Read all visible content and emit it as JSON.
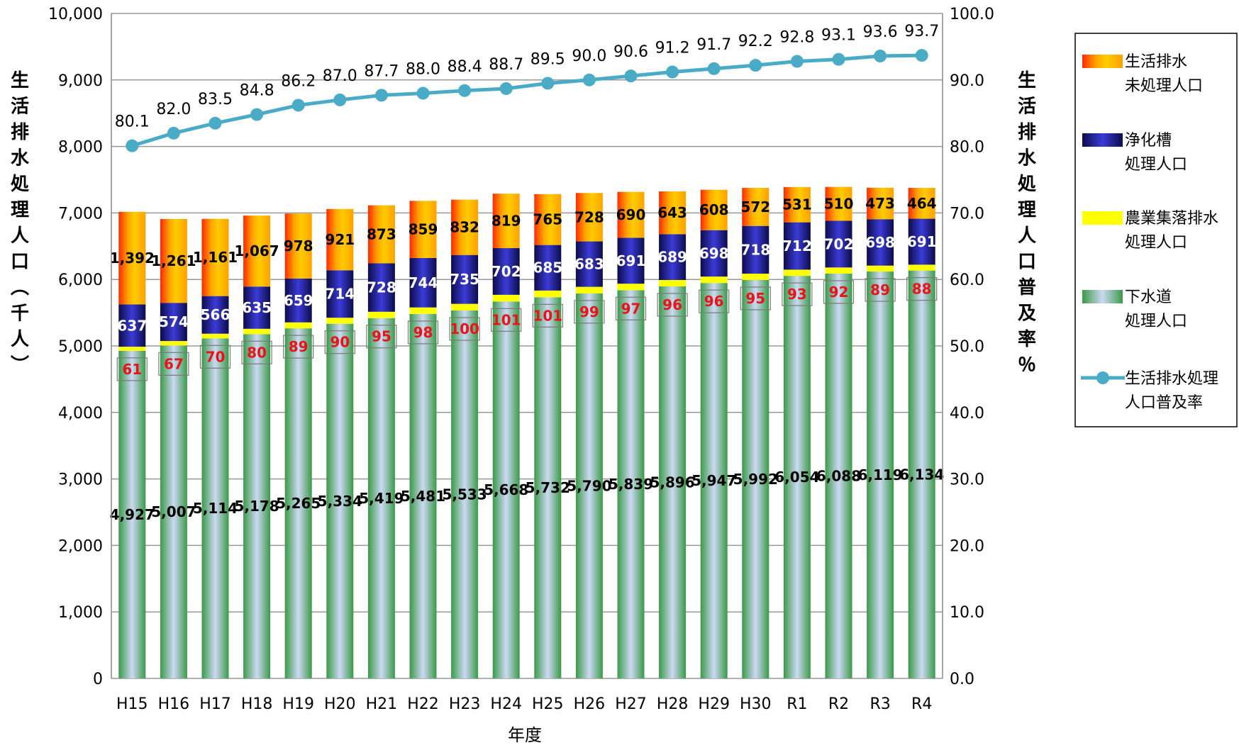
{
  "chart_data": {
    "type": "bar",
    "categories": [
      "H15",
      "H16",
      "H17",
      "H18",
      "H19",
      "H20",
      "H21",
      "H22",
      "H23",
      "H24",
      "H25",
      "H26",
      "H27",
      "H28",
      "H29",
      "H30",
      "R1",
      "R2",
      "R3",
      "R4"
    ],
    "series": [
      {
        "key": "sewer",
        "name": "下水道処理人口",
        "legend_lines": [
          "下水道",
          "処理人口"
        ],
        "values": [
          4927,
          5007,
          5114,
          5178,
          5265,
          5334,
          5419,
          5481,
          5533,
          5668,
          5732,
          5790,
          5839,
          5896,
          5947,
          5992,
          6054,
          6088,
          6119,
          6134
        ]
      },
      {
        "key": "rural",
        "name": "農業集落排水処理人口",
        "legend_lines": [
          "農業集落排水",
          "処理人口"
        ],
        "values": [
          61,
          67,
          70,
          80,
          89,
          90,
          95,
          98,
          100,
          101,
          101,
          99,
          97,
          96,
          96,
          95,
          93,
          92,
          89,
          88
        ]
      },
      {
        "key": "septic",
        "name": "浄化槽処理人口",
        "legend_lines": [
          "浄化槽",
          "処理人口"
        ],
        "values": [
          637,
          574,
          566,
          635,
          659,
          714,
          728,
          744,
          735,
          702,
          685,
          683,
          691,
          689,
          698,
          718,
          712,
          702,
          698,
          691
        ]
      },
      {
        "key": "untreated",
        "name": "生活排水未処理人口",
        "legend_lines": [
          "生活排水",
          "未処理人口"
        ],
        "values": [
          1392,
          1261,
          1161,
          1067,
          978,
          921,
          873,
          859,
          832,
          819,
          765,
          728,
          690,
          643,
          608,
          572,
          531,
          510,
          473,
          464
        ]
      },
      {
        "key": "rate",
        "type": "line",
        "axis": "right",
        "name": "生活排水処理人口普及率",
        "legend_lines": [
          "生活排水処理",
          "人口普及率"
        ],
        "values": [
          80.1,
          82.0,
          83.5,
          84.8,
          86.2,
          87.0,
          87.7,
          88.0,
          88.4,
          88.7,
          89.5,
          90.0,
          90.6,
          91.2,
          91.7,
          92.2,
          92.8,
          93.1,
          93.6,
          93.7
        ]
      }
    ],
    "xlabel": "年度",
    "ylabel_left": "生活排水処理人口（千人）",
    "ylabel_right": "生活排水処理人口普及率 ％",
    "ylim_left": [
      0,
      10000
    ],
    "ylim_right": [
      0,
      100
    ],
    "yticks_left": [
      "0",
      "1,000",
      "2,000",
      "3,000",
      "4,000",
      "5,000",
      "6,000",
      "7,000",
      "8,000",
      "9,000",
      "10,000"
    ],
    "yticks_right": [
      "0.0",
      "10.0",
      "20.0",
      "30.0",
      "40.0",
      "50.0",
      "60.0",
      "70.0",
      "80.0",
      "90.0",
      "100.0"
    ],
    "grid": "horizontal",
    "legend_position": "right",
    "colors": {
      "sewer_edge": "#3a9a48",
      "sewer_center": "#cdd9f4",
      "rural": "#ffff00",
      "septic_edge": "#0c0c4a",
      "septic_center": "#3b3bd8",
      "untreated_edge": "#ff2a00",
      "untreated_mid": "#ffa500",
      "untreated_center": "#ffcc00",
      "rate_line": "#4aabc6",
      "label_red": "#e8141c"
    }
  }
}
